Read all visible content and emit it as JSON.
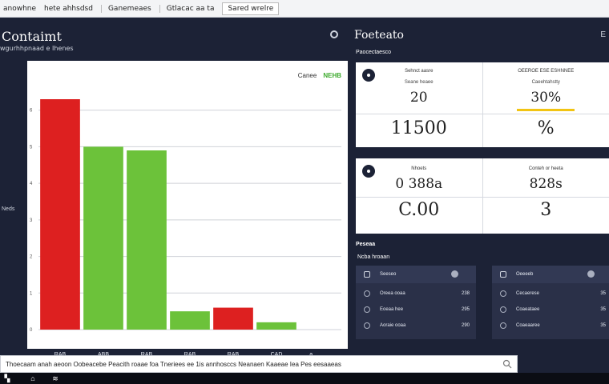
{
  "topbar": {
    "tabs": [
      "anowhne",
      "hete ahhsdsd",
      "Ganemeaes",
      "Gtlacac aa ta",
      "Sared wrelre"
    ]
  },
  "left": {
    "title": "Contaimt",
    "subtitle": "wgurhhpnaad e Ihenes",
    "side_label": "Neds",
    "legend": [
      "Canee",
      "NEHB"
    ]
  },
  "chart_data": {
    "type": "bar",
    "title": "",
    "xlabel": "",
    "ylabel": "",
    "categories": [
      "RAB",
      "ABB",
      "RAB",
      "RAB",
      "RAB",
      "CAD"
    ],
    "ylim": [
      0,
      7
    ],
    "yticks": [
      "6",
      "5",
      "4",
      "3",
      "2",
      "1",
      "0"
    ],
    "bars": [
      {
        "x": 0.5,
        "value": 6.3,
        "color": "#dd2020"
      },
      {
        "x": 1.5,
        "value": 5.0,
        "color": "#6cc23a"
      },
      {
        "x": 2.5,
        "value": 4.9,
        "color": "#6cc23a"
      },
      {
        "x": 3.5,
        "value": 0.5,
        "color": "#6cc23a"
      },
      {
        "x": 4.5,
        "value": 0.6,
        "color": "#dd2020"
      },
      {
        "x": 5.5,
        "value": 0.2,
        "color": "#6cc23a"
      }
    ],
    "x_extra_label": "a"
  },
  "right": {
    "title": "Foeteato",
    "icon_glyph": "E",
    "subtitle": "Paocectaesco",
    "cards_top": [
      {
        "head": "Sehnct aasre",
        "head2": "Seane heaee",
        "mid": "20",
        "big": "11500",
        "has_dot": true
      },
      {
        "head": "OEEROE ESE ESHNNEE",
        "head2": "Caeehtahstty",
        "mid": "30%",
        "big": "%",
        "has_bar": true
      }
    ],
    "cards_bottom": [
      {
        "head": "Nhoets",
        "mid": "0 388a",
        "big": "C.00",
        "has_dot": true
      },
      {
        "head": "Conteh or heeta",
        "mid": "828s",
        "big": "3"
      }
    ],
    "list_h1": "Peseaa",
    "list_h2": "Ncba hroaan",
    "panels": [
      {
        "title": "Seeseo",
        "rows": [
          {
            "label": "Oreea ooaa",
            "value": "238"
          },
          {
            "label": "Eoeaa hee",
            "value": "295"
          },
          {
            "label": "Aoraie ooaa",
            "value": "290"
          }
        ]
      },
      {
        "title": "Oeeeeb",
        "rows": [
          {
            "label": "Cecaerese",
            "value": "35"
          },
          {
            "label": "Coaeataee",
            "value": "35"
          },
          {
            "label": "Coaeaaree",
            "value": "35"
          }
        ]
      }
    ]
  },
  "statusbar": {
    "text": "Thoecaam  anah aeoon  Oobeacebe  Peacith roaae  foa  Tneriees  ee  1is  annhosccs  Neanaen  Kaaeae  Iea  Pes  eesaaeas"
  },
  "colors": {
    "background": "#1c2236",
    "red": "#dd2020",
    "green": "#6cc23a",
    "yellow": "#f2c413"
  }
}
